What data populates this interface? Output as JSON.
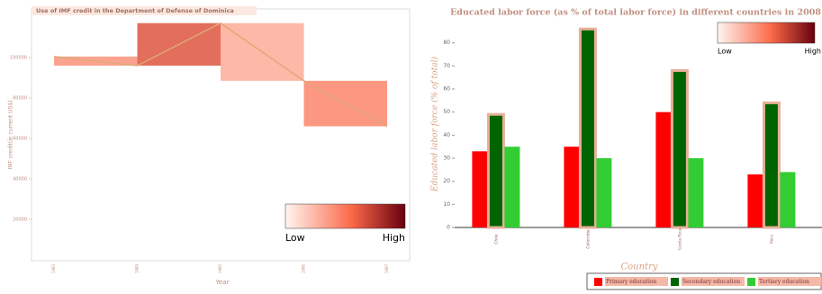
{
  "chart_data": [
    {
      "type": "line",
      "title": "Use of IMF credit in the Department of Defense of Dominica",
      "x_label": "Year",
      "y_label": "IMF credit(in current US$)",
      "categories": [
        "1983",
        "1984",
        "1985",
        "1986",
        "1987"
      ],
      "values": [
        100500,
        96000,
        117000,
        88500,
        66000
      ],
      "color": "#e0a878",
      "ylim": [
        0,
        124000
      ],
      "yticks": [
        20000,
        40000,
        60000,
        80000,
        100000
      ],
      "colorbar": {
        "low": "Low",
        "high": "High"
      }
    },
    {
      "type": "grouped_bar",
      "title": "Educated labor force (as % of total labor force) in different countries in 2008",
      "x_label": "Country",
      "y_label": "Educated labor force (% of total)",
      "categories": [
        "Chile",
        "Colombia",
        "Costa Rica",
        "Peru"
      ],
      "series": [
        {
          "name": "Primary education",
          "color": "#ff0000",
          "values": [
            33,
            35,
            50,
            23
          ]
        },
        {
          "name": "Secondary education",
          "color": "#006400",
          "values": [
            49,
            86,
            68,
            54
          ]
        },
        {
          "name": "Tertiary education",
          "color": "#32cd32",
          "values": [
            35,
            30,
            30,
            24
          ]
        }
      ],
      "edge_color": "#e8b098",
      "ylim": [
        0,
        90
      ],
      "yticks": [
        0,
        10,
        20,
        30,
        40,
        50,
        60,
        70,
        80
      ],
      "colorbar": {
        "low": "Low",
        "high": "High"
      }
    }
  ]
}
